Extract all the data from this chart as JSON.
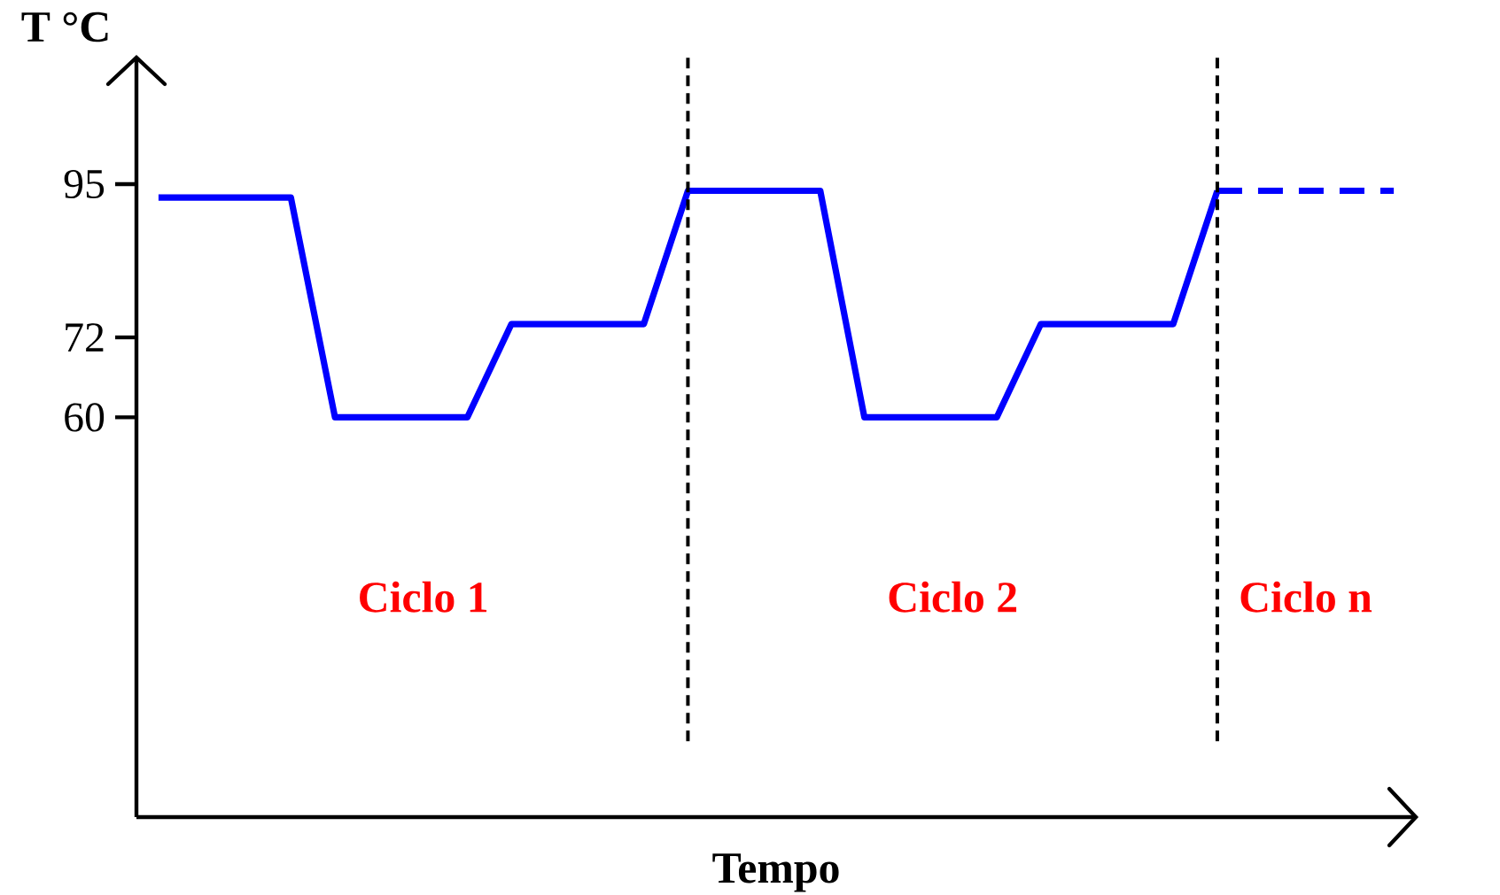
{
  "chart_data": {
    "type": "line",
    "xlabel": "Tempo",
    "ylabel": "T °C",
    "categories": [
      null,
      null,
      null,
      null,
      null,
      null,
      null,
      null,
      null,
      null,
      null,
      null,
      null,
      null,
      null,
      null,
      null,
      null,
      null,
      null,
      null,
      null,
      null,
      null,
      null,
      null,
      null,
      null,
      null
    ],
    "ylim": [
      0,
      114
    ],
    "yticks": [
      60,
      72,
      95
    ],
    "tick_labels": "y",
    "series": [
      {
        "color": "#0000ff",
        "line_style": "solid",
        "values": [
          93,
          93,
          93,
          93,
          60,
          60,
          60,
          60,
          74,
          74,
          74,
          74,
          94,
          94,
          94,
          94,
          60,
          60,
          60,
          60,
          74,
          74,
          74,
          74,
          94,
          null,
          null,
          null,
          null
        ]
      },
      {
        "color": "#0000ff",
        "line_style": "dashed",
        "values": [
          null,
          null,
          null,
          null,
          null,
          null,
          null,
          null,
          null,
          null,
          null,
          null,
          null,
          null,
          null,
          null,
          null,
          null,
          null,
          null,
          null,
          null,
          null,
          null,
          94,
          94,
          94,
          94,
          94
        ]
      }
    ],
    "annotations": [
      "Ciclo 1",
      "Ciclo 2",
      "Ciclo n"
    ]
  }
}
